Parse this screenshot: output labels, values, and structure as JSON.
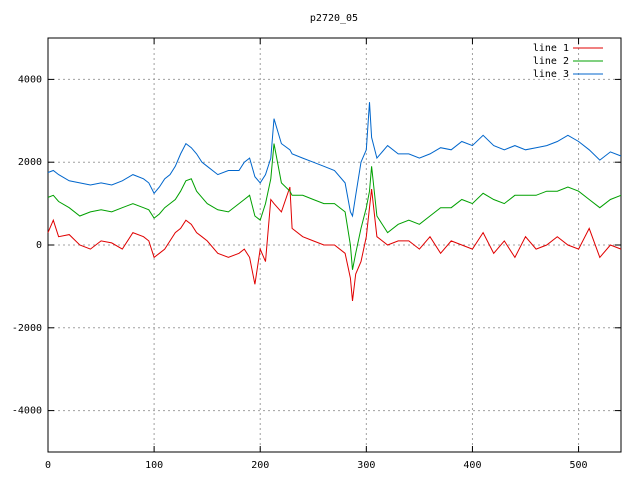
{
  "chart_data": {
    "type": "line",
    "title": "p2720_05",
    "x": [
      0,
      5,
      10,
      20,
      30,
      40,
      50,
      60,
      70,
      80,
      90,
      95,
      100,
      105,
      110,
      115,
      120,
      125,
      130,
      135,
      140,
      145,
      150,
      160,
      170,
      180,
      185,
      190,
      195,
      200,
      205,
      210,
      213,
      220,
      228,
      230,
      240,
      250,
      260,
      270,
      280,
      285,
      287,
      290,
      295,
      300,
      303,
      305,
      310,
      320,
      330,
      340,
      350,
      360,
      370,
      380,
      390,
      400,
      410,
      420,
      430,
      440,
      450,
      460,
      470,
      480,
      490,
      500,
      510,
      520,
      530,
      540
    ],
    "series": [
      {
        "name": "line 1",
        "color": "#e00000",
        "values": [
          300,
          600,
          200,
          250,
          0,
          -100,
          100,
          50,
          -100,
          300,
          200,
          100,
          -300,
          -200,
          -100,
          100,
          300,
          400,
          600,
          500,
          300,
          200,
          100,
          -200,
          -300,
          -200,
          -100,
          -300,
          -950,
          -100,
          -400,
          1100,
          1000,
          800,
          1400,
          400,
          200,
          100,
          0,
          0,
          -200,
          -800,
          -1350,
          -700,
          -400,
          200,
          900,
          1350,
          200,
          0,
          100,
          100,
          -100,
          200,
          -200,
          100,
          0,
          -100,
          300,
          -200,
          100,
          -300,
          200,
          -100,
          0,
          200,
          0,
          -100,
          400,
          -300,
          0,
          -100
        ]
      },
      {
        "name": "line 2",
        "color": "#00a000",
        "values": [
          1150,
          1200,
          1050,
          900,
          700,
          800,
          850,
          800,
          900,
          1000,
          900,
          850,
          650,
          750,
          900,
          1000,
          1100,
          1300,
          1550,
          1600,
          1300,
          1150,
          1000,
          850,
          800,
          1000,
          1100,
          1200,
          700,
          600,
          1000,
          1600,
          2450,
          1500,
          1300,
          1200,
          1200,
          1100,
          1000,
          1000,
          800,
          0,
          -600,
          -200,
          400,
          900,
          1300,
          1900,
          700,
          300,
          500,
          600,
          500,
          700,
          900,
          900,
          1100,
          1000,
          1250,
          1100,
          1000,
          1200,
          1200,
          1200,
          1300,
          1300,
          1400,
          1300,
          1100,
          900,
          1100,
          1200
        ]
      },
      {
        "name": "line 3",
        "color": "#0066cc",
        "values": [
          1750,
          1800,
          1700,
          1550,
          1500,
          1450,
          1500,
          1450,
          1550,
          1700,
          1600,
          1500,
          1250,
          1400,
          1600,
          1700,
          1900,
          2200,
          2450,
          2350,
          2200,
          2000,
          1900,
          1700,
          1800,
          1800,
          2000,
          2100,
          1650,
          1500,
          1700,
          2100,
          3050,
          2450,
          2300,
          2200,
          2100,
          2000,
          1900,
          1800,
          1500,
          800,
          700,
          1200,
          2000,
          2300,
          3450,
          2600,
          2100,
          2400,
          2200,
          2200,
          2100,
          2200,
          2350,
          2300,
          2500,
          2400,
          2650,
          2400,
          2300,
          2400,
          2300,
          2350,
          2400,
          2500,
          2650,
          2500,
          2300,
          2050,
          2250,
          2150
        ]
      }
    ],
    "xlim": [
      0,
      540
    ],
    "ylim": [
      -5000,
      5000
    ],
    "xticks": [
      0,
      100,
      200,
      300,
      400,
      500
    ],
    "yticks": [
      -4000,
      -2000,
      0,
      2000,
      4000
    ],
    "grid": true,
    "legend": "top-right"
  }
}
